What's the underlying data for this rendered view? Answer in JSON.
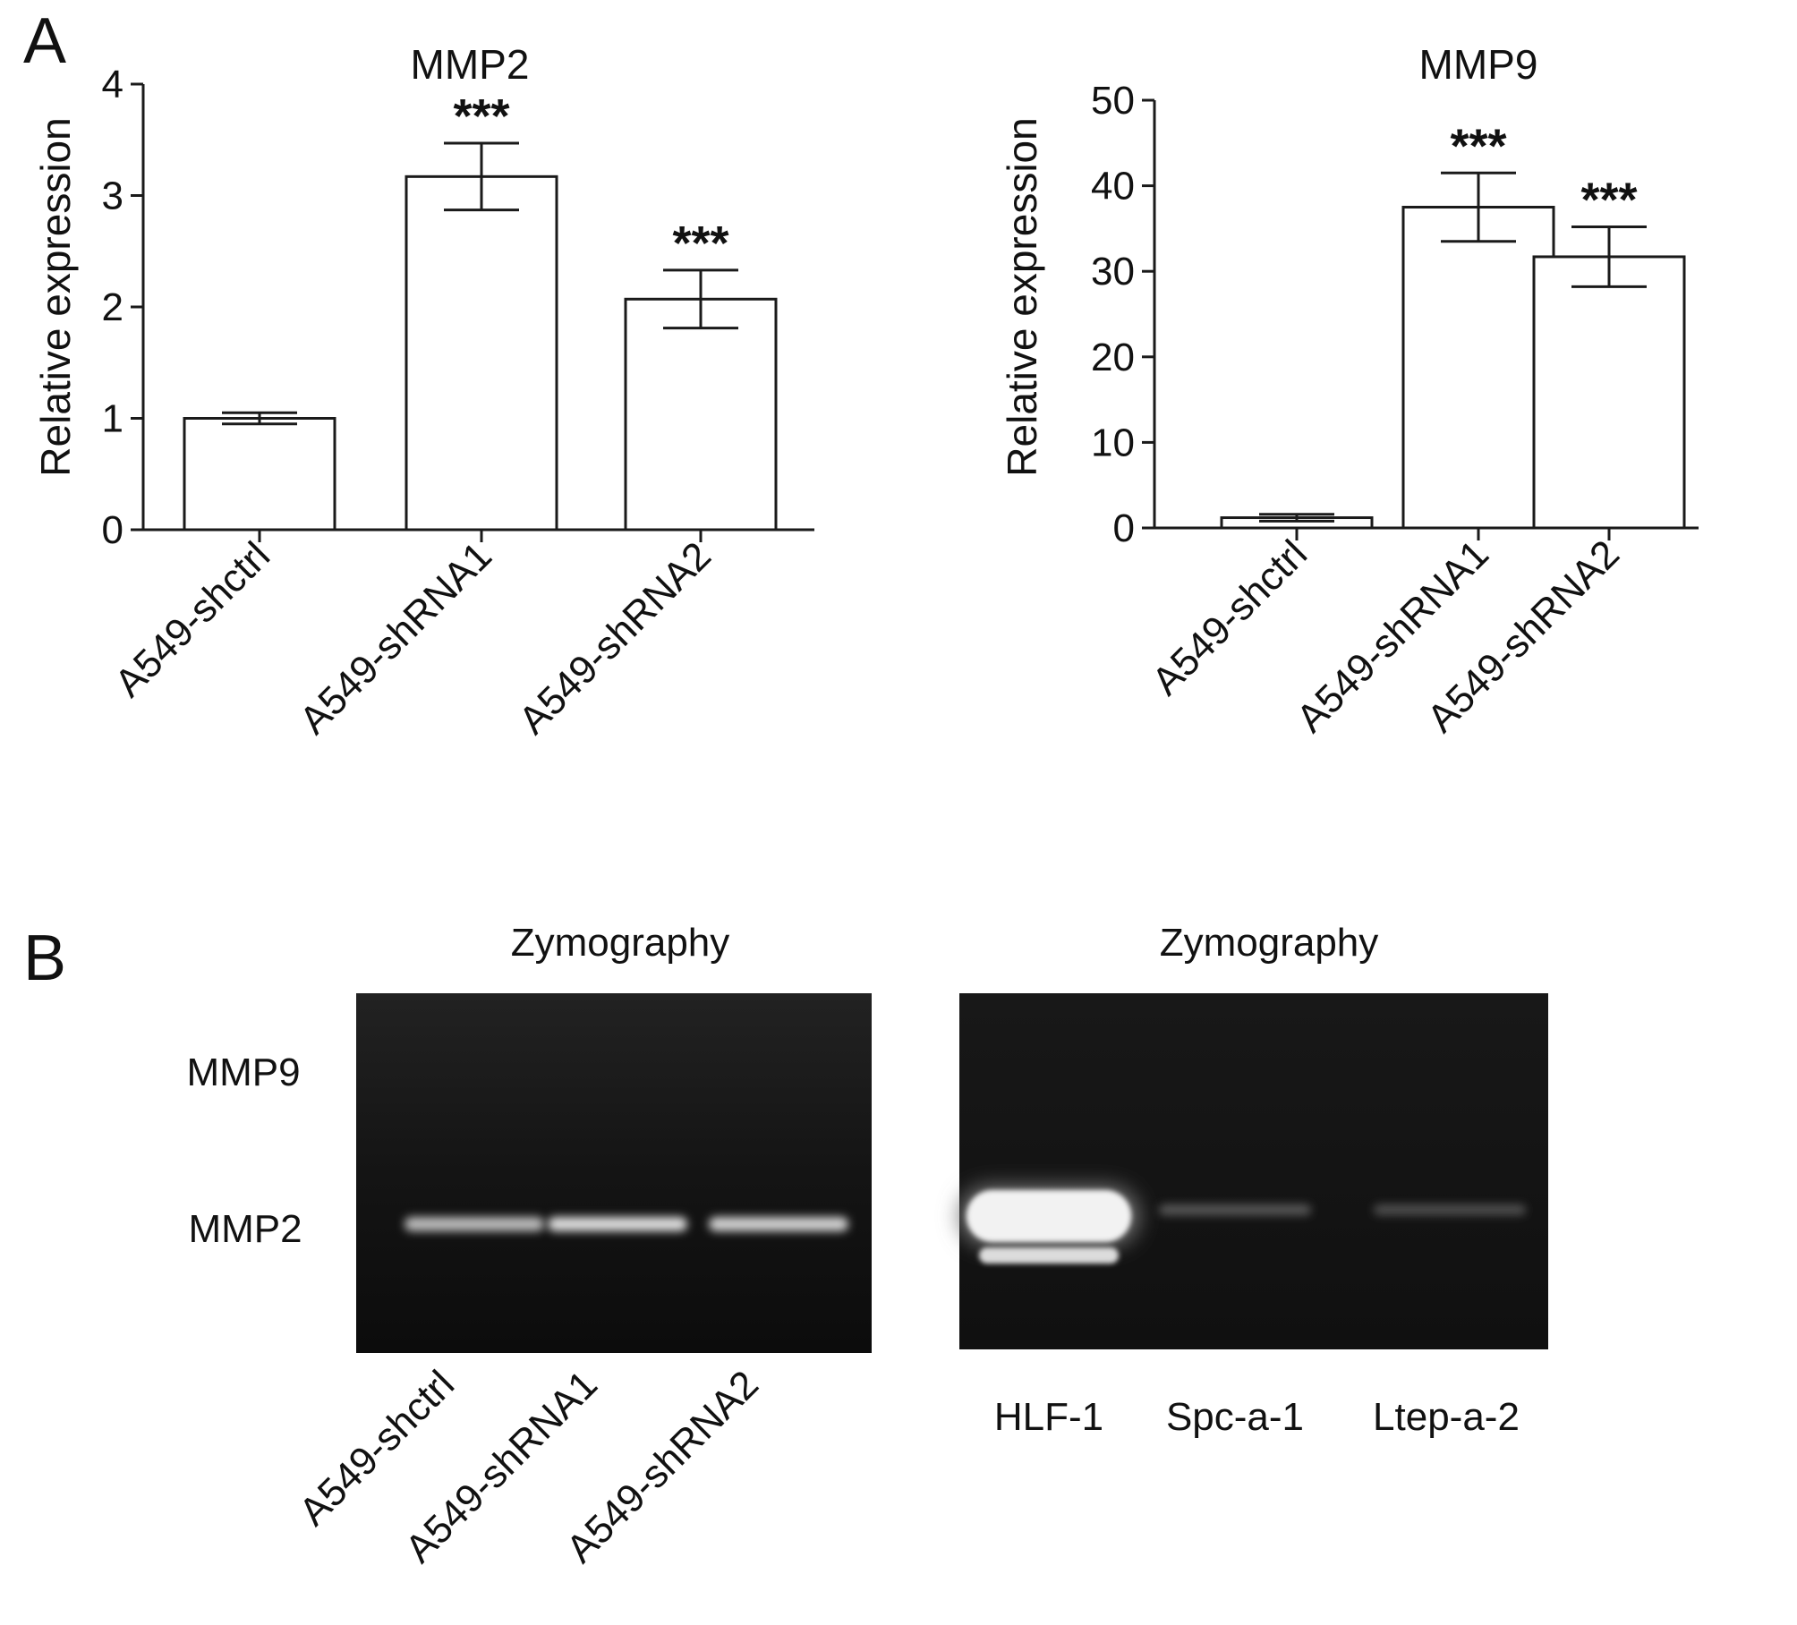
{
  "panels": {
    "a": "A",
    "b": "B"
  },
  "chart_data": [
    {
      "type": "bar",
      "title": "MMP2",
      "ylabel": "Relative expression",
      "xlabel": "",
      "ylim": [
        0,
        4
      ],
      "yticks": [
        0,
        1,
        2,
        3,
        4
      ],
      "categories": [
        "A549-shctrl",
        "A549-shRNA1",
        "A549-shRNA2"
      ],
      "values": [
        1.0,
        3.17,
        2.07
      ],
      "errors": [
        0.05,
        0.3,
        0.26
      ],
      "annotations": [
        "",
        "***",
        "***"
      ]
    },
    {
      "type": "bar",
      "title": "MMP9",
      "ylabel": "Relative expression",
      "xlabel": "",
      "ylim": [
        0,
        50
      ],
      "yticks": [
        0,
        10,
        20,
        30,
        40,
        50
      ],
      "categories": [
        "A549-shctrl",
        "A549-shRNA1",
        "A549-shRNA2"
      ],
      "values": [
        1.2,
        37.5,
        31.7
      ],
      "errors": [
        0.4,
        4.0,
        3.5
      ],
      "annotations": [
        "",
        "***",
        "***"
      ]
    }
  ],
  "gels": [
    {
      "title": "Zymography",
      "band_labels": [
        "MMP9",
        "MMP2"
      ],
      "lanes": [
        "A549-shctrl",
        "A549-shRNA1",
        "A549-shRNA2"
      ],
      "mmp2_intensity": [
        0.55,
        0.85,
        0.75
      ]
    },
    {
      "title": "Zymography",
      "lanes": [
        "HLF-1",
        "Spc-a-1",
        "Ltep-a-2"
      ],
      "mmp2_intensity": [
        1.0,
        0.12,
        0.1
      ]
    }
  ]
}
